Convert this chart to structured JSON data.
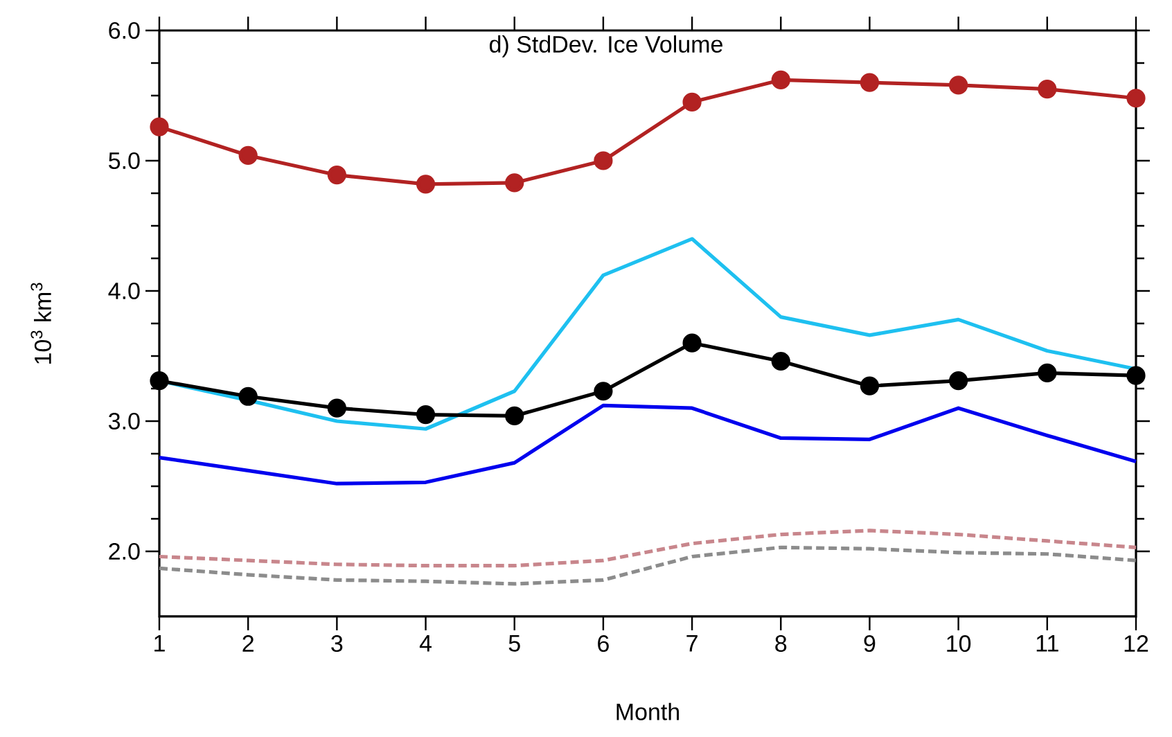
{
  "chart_data": {
    "type": "line",
    "title": "d) StdDev. Ice Volume",
    "xlabel": "Month",
    "ylabel": "10$^{3}$ km$^{3}$",
    "x": [
      1,
      2,
      3,
      4,
      5,
      6,
      7,
      8,
      9,
      10,
      11,
      12
    ],
    "xlim": [
      1,
      12
    ],
    "xticks": [
      1,
      2,
      3,
      4,
      5,
      6,
      7,
      8,
      9,
      10,
      11,
      12
    ],
    "ylim": [
      1.5,
      6.0
    ],
    "yticks": [
      {
        "value": 2.0,
        "label": "2.0"
      },
      {
        "value": 3.0,
        "label": "3.0"
      },
      {
        "value": 4.0,
        "label": "4.0"
      },
      {
        "value": 5.0,
        "label": "5.0"
      },
      {
        "value": 6.0,
        "label": "6.0"
      }
    ],
    "series": [
      {
        "color": "#b22222",
        "marker": "circle",
        "line_style": "solid",
        "values": [
          5.26,
          5.04,
          4.89,
          4.82,
          4.83,
          5.0,
          5.45,
          5.62,
          5.6,
          5.58,
          5.55,
          5.48
        ]
      },
      {
        "color": "#1ec0f0",
        "marker": "none",
        "line_style": "solid",
        "values": [
          3.31,
          3.16,
          3.0,
          2.94,
          3.23,
          4.12,
          4.4,
          3.8,
          3.66,
          3.78,
          3.54,
          3.4
        ]
      },
      {
        "color": "#000000",
        "marker": "circle",
        "line_style": "solid",
        "values": [
          3.31,
          3.19,
          3.1,
          3.05,
          3.04,
          3.23,
          3.6,
          3.46,
          3.27,
          3.31,
          3.37,
          3.35
        ]
      },
      {
        "color": "#0000ee",
        "marker": "none",
        "line_style": "solid",
        "values": [
          2.72,
          2.62,
          2.52,
          2.53,
          2.68,
          3.12,
          3.1,
          2.87,
          2.86,
          3.1,
          2.89,
          2.69
        ]
      },
      {
        "color": "#c8868c",
        "marker": "none",
        "line_style": "dashed",
        "values": [
          1.96,
          1.93,
          1.9,
          1.89,
          1.89,
          1.93,
          2.06,
          2.13,
          2.16,
          2.13,
          2.08,
          2.03
        ]
      },
      {
        "color": "#8c8c8c",
        "marker": "none",
        "line_style": "dashed",
        "values": [
          1.87,
          1.82,
          1.78,
          1.77,
          1.75,
          1.78,
          1.96,
          2.03,
          2.02,
          1.99,
          1.98,
          1.93
        ]
      }
    ]
  }
}
